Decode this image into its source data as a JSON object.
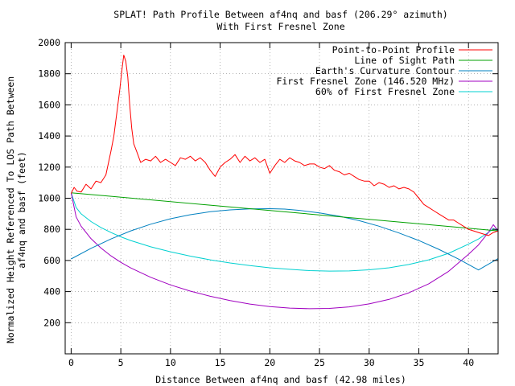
{
  "chart_data": {
    "type": "line",
    "title": "SPLAT! Path Profile Between af4nq and basf (206.29° azimuth)",
    "subtitle": "With First Fresnel Zone",
    "xlabel": "Distance Between af4nq and basf (42.98 miles)",
    "ylabel": "Normalized Height Referenced To LOS Path Between",
    "ylabel2": "af4nq and basf (feet)",
    "xlim": [
      -0.6,
      42.98
    ],
    "ylim": [
      0,
      2000
    ],
    "x_ticks": [
      0,
      5,
      10,
      15,
      20,
      25,
      30,
      35,
      40
    ],
    "y_ticks": [
      200,
      400,
      600,
      800,
      1000,
      1200,
      1400,
      1600,
      1800,
      2000
    ],
    "grid": true,
    "legend_position": "top-right",
    "series": [
      {
        "name": "Point-to-Point Profile",
        "color": "#ff0000",
        "x": [
          0,
          0.3,
          0.6,
          1,
          1.5,
          2,
          2.5,
          3,
          3.5,
          4,
          4.3,
          4.6,
          4.9,
          5.1,
          5.3,
          5.5,
          5.7,
          5.9,
          6.1,
          6.3,
          6.6,
          7,
          7.5,
          8,
          8.5,
          9,
          9.5,
          10,
          10.5,
          11,
          11.5,
          12,
          12.5,
          13,
          13.5,
          14,
          14.5,
          15,
          15.5,
          16,
          16.5,
          17,
          17.5,
          18,
          18.5,
          19,
          19.5,
          20,
          20.5,
          21,
          21.5,
          22,
          22.5,
          23,
          23.5,
          24,
          24.5,
          25,
          25.5,
          26,
          26.5,
          27,
          27.5,
          28,
          28.5,
          29,
          29.5,
          30,
          30.5,
          31,
          31.5,
          32,
          32.5,
          33,
          33.5,
          34,
          34.5,
          35,
          35.5,
          36,
          36.5,
          37,
          37.5,
          38,
          38.5,
          39,
          39.5,
          40,
          40.5,
          41,
          41.5,
          42,
          42.5,
          42.98
        ],
        "y": [
          1030,
          1070,
          1045,
          1040,
          1090,
          1060,
          1110,
          1100,
          1150,
          1300,
          1400,
          1550,
          1700,
          1820,
          1920,
          1880,
          1780,
          1600,
          1450,
          1350,
          1300,
          1230,
          1250,
          1240,
          1270,
          1230,
          1250,
          1230,
          1210,
          1260,
          1250,
          1270,
          1240,
          1260,
          1230,
          1180,
          1140,
          1200,
          1230,
          1250,
          1280,
          1230,
          1270,
          1240,
          1260,
          1230,
          1250,
          1160,
          1210,
          1250,
          1230,
          1260,
          1240,
          1230,
          1210,
          1220,
          1220,
          1200,
          1190,
          1210,
          1180,
          1170,
          1150,
          1160,
          1140,
          1120,
          1110,
          1110,
          1080,
          1100,
          1090,
          1070,
          1080,
          1060,
          1070,
          1060,
          1040,
          1000,
          960,
          940,
          920,
          900,
          880,
          860,
          860,
          840,
          820,
          800,
          790,
          780,
          770,
          760,
          780,
          790
        ]
      },
      {
        "name": "Line of Sight Path",
        "color": "#00a000",
        "x": [
          0,
          42.98
        ],
        "y": [
          1035,
          790
        ]
      },
      {
        "name": "Earth's Curvature Contour",
        "color": "#0080c0",
        "x": [
          0,
          2,
          4,
          6,
          8,
          10,
          12,
          14,
          16,
          18,
          20,
          21.5,
          23,
          25,
          27,
          29,
          31,
          33,
          35,
          37,
          39,
          41,
          42.98
        ],
        "y": [
          610,
          678,
          738,
          790,
          833,
          868,
          894,
          913,
          925,
          932,
          933,
          930,
          922,
          906,
          884,
          856,
          820,
          777,
          728,
          672,
          609,
          539,
          612
        ]
      },
      {
        "name": "First Fresnel Zone (146.520 MHz)",
        "color": "#a000c0",
        "x": [
          0,
          0.5,
          1,
          2,
          3,
          4,
          5,
          6,
          8,
          10,
          12,
          14,
          16,
          18,
          20,
          22,
          24,
          26,
          28,
          30,
          32,
          34,
          36,
          38,
          40,
          41,
          42,
          42.5,
          42.98
        ],
        "y": [
          1035,
          880,
          820,
          740,
          680,
          630,
          588,
          552,
          492,
          443,
          403,
          370,
          342,
          320,
          304,
          294,
          290,
          292,
          302,
          321,
          350,
          392,
          450,
          530,
          640,
          700,
          780,
          830,
          790
        ]
      },
      {
        "name": "60% of First Fresnel Zone",
        "color": "#00d0d0",
        "x": [
          0,
          0.5,
          1,
          2,
          3,
          4,
          5,
          6,
          8,
          10,
          12,
          14,
          16,
          18,
          20,
          22,
          24,
          26,
          28,
          30,
          32,
          34,
          36,
          38,
          40,
          41,
          42,
          42.5,
          42.98
        ],
        "y": [
          1035,
          940,
          900,
          850,
          812,
          780,
          752,
          728,
          688,
          656,
          628,
          604,
          584,
          567,
          553,
          543,
          535,
          532,
          533,
          540,
          553,
          574,
          604,
          646,
          705,
          738,
          780,
          805,
          790
        ]
      }
    ]
  }
}
